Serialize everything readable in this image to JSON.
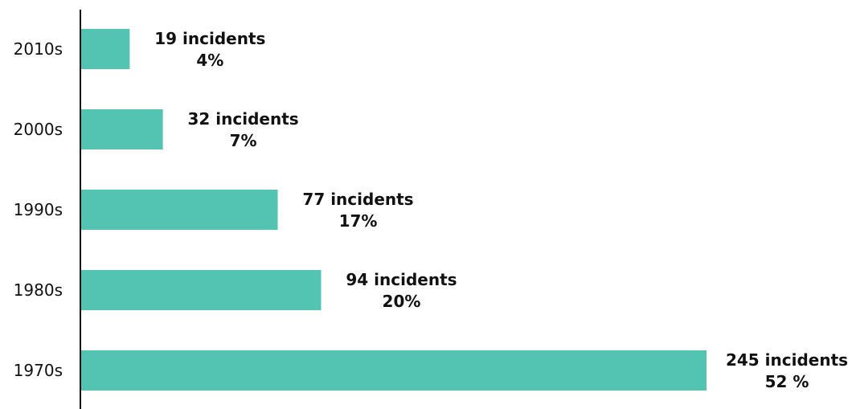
{
  "chart_data": {
    "type": "bar",
    "orientation": "horizontal",
    "categories": [
      "2010s",
      "2000s",
      "1990s",
      "1980s",
      "1970s"
    ],
    "values": [
      19,
      32,
      77,
      94,
      245
    ],
    "data_labels": [
      {
        "count": "19 incidents",
        "pct": "4%"
      },
      {
        "count": "32 incidents",
        "pct": "7%"
      },
      {
        "count": "77 incidents",
        "pct": "17%"
      },
      {
        "count": "94 incidents",
        "pct": "20%"
      },
      {
        "count": "245 incidents",
        "pct": "52 %"
      }
    ],
    "xlim": [
      0,
      245
    ],
    "bar_color": "#53c4b1",
    "axis_color": "#111111",
    "grid": false,
    "legend": "none"
  }
}
